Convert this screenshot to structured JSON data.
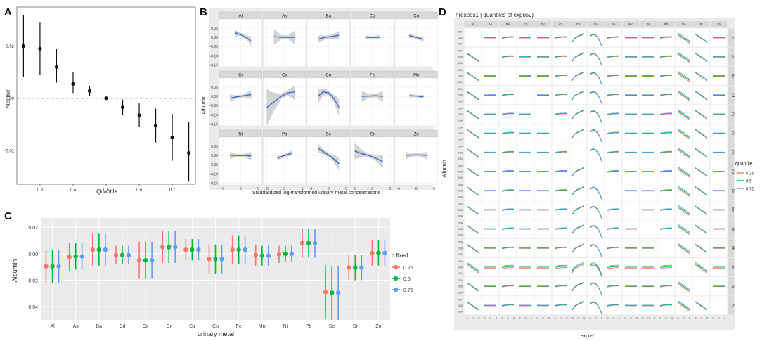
{
  "panel_letters": [
    "A",
    "B",
    "C",
    "D"
  ],
  "chart_data": [
    {
      "panel": "A",
      "type": "scatter",
      "xlabel": "Quantile",
      "ylabel": "Albumin",
      "xlim": [
        0.23,
        0.77
      ],
      "ylim": [
        -0.033,
        0.035
      ],
      "x_ticks": [
        0.3,
        0.4,
        0.5,
        0.6,
        0.7
      ],
      "x_tick_labels": [
        "0.3",
        "0.4",
        "0.5",
        "0.6",
        "0.7"
      ],
      "y_ticks": [
        0.02,
        0.0,
        -0.02
      ],
      "y_tick_labels": [
        "0.02",
        "0.00",
        "-0.02"
      ],
      "reference_line": 0.0,
      "points": [
        {
          "x": 0.25,
          "y": 0.02,
          "lo": 0.008,
          "hi": 0.032
        },
        {
          "x": 0.3,
          "y": 0.019,
          "lo": 0.009,
          "hi": 0.029
        },
        {
          "x": 0.35,
          "y": 0.012,
          "lo": 0.006,
          "hi": 0.019
        },
        {
          "x": 0.4,
          "y": 0.0055,
          "lo": 0.002,
          "hi": 0.01
        },
        {
          "x": 0.45,
          "y": 0.0028,
          "lo": 0.001,
          "hi": 0.0045
        },
        {
          "x": 0.5,
          "y": 0.0,
          "lo": 0.0,
          "hi": 0.0
        },
        {
          "x": 0.55,
          "y": -0.0035,
          "lo": -0.0065,
          "hi": -0.0005
        },
        {
          "x": 0.6,
          "y": -0.0065,
          "lo": -0.011,
          "hi": -0.002
        },
        {
          "x": 0.65,
          "y": -0.0105,
          "lo": -0.017,
          "hi": -0.004
        },
        {
          "x": 0.7,
          "y": -0.015,
          "lo": -0.024,
          "hi": -0.006
        },
        {
          "x": 0.75,
          "y": -0.021,
          "lo": -0.032,
          "hi": -0.009
        }
      ]
    },
    {
      "panel": "B",
      "type": "line",
      "xlabel": "Standardized log-transformed urinary metal concentrations",
      "ylabel": "Albumin",
      "xlim": [
        -6,
        6
      ],
      "ylim": [
        -0.16,
        0.1
      ],
      "x_ticks": [
        -5,
        0,
        5
      ],
      "x_tick_labels": [
        "-5",
        "0",
        "5"
      ],
      "y_ticks": [
        0.05,
        0.0,
        -0.05,
        -0.1,
        -0.15
      ],
      "y_tick_labels": [
        "0.05",
        "0.00",
        "-0.05",
        "-0.10",
        "-0.15"
      ],
      "facets": [
        {
          "name": "Al",
          "x": [
            -1.5,
            0,
            1.5,
            3
          ],
          "y": [
            0.025,
            0.015,
            0.0,
            -0.02
          ],
          "lo": [
            0.005,
            0.008,
            -0.01,
            -0.045
          ],
          "hi": [
            0.04,
            0.025,
            0.01,
            0.005
          ]
        },
        {
          "name": "As",
          "x": [
            -3,
            -1,
            1,
            3
          ],
          "y": [
            0.005,
            0.0,
            0.0,
            0.0
          ],
          "lo": [
            -0.04,
            -0.012,
            -0.01,
            -0.04
          ],
          "hi": [
            0.045,
            0.012,
            0.01,
            0.04
          ]
        },
        {
          "name": "Ba",
          "x": [
            -3,
            -1,
            1,
            3
          ],
          "y": [
            -0.01,
            0.0,
            0.005,
            0.012
          ],
          "lo": [
            -0.03,
            -0.012,
            -0.006,
            -0.012
          ],
          "hi": [
            0.01,
            0.01,
            0.015,
            0.035
          ]
        },
        {
          "name": "Cd",
          "x": [
            -2,
            0,
            2
          ],
          "y": [
            0.0,
            0.0,
            0.0
          ],
          "lo": [
            -0.012,
            -0.006,
            -0.012
          ],
          "hi": [
            0.012,
            0.006,
            0.012
          ]
        },
        {
          "name": "Co",
          "x": [
            -2,
            0,
            2
          ],
          "y": [
            0.01,
            0.0,
            -0.01
          ],
          "lo": [
            -0.002,
            -0.006,
            -0.025
          ],
          "hi": [
            0.022,
            0.006,
            0.005
          ]
        },
        {
          "name": "Cr",
          "x": [
            -3,
            -1,
            1,
            3
          ],
          "y": [
            -0.01,
            -0.002,
            0.004,
            0.01
          ],
          "lo": [
            -0.03,
            -0.01,
            -0.004,
            -0.015
          ],
          "hi": [
            0.01,
            0.006,
            0.012,
            0.035
          ]
        },
        {
          "name": "Cs",
          "x": [
            -5,
            -3,
            -1,
            1,
            3
          ],
          "y": [
            -0.06,
            -0.03,
            0.0,
            0.02,
            0.025
          ],
          "lo": [
            -0.16,
            -0.08,
            -0.015,
            0.005,
            -0.02
          ],
          "hi": [
            0.04,
            0.02,
            0.015,
            0.035,
            0.06
          ]
        },
        {
          "name": "Cu",
          "x": [
            -3,
            -1.5,
            0,
            1.5,
            3
          ],
          "y": [
            0.0,
            0.025,
            0.02,
            -0.01,
            -0.06
          ],
          "lo": [
            -0.04,
            0.005,
            0.008,
            -0.03,
            -0.11
          ],
          "hi": [
            0.04,
            0.045,
            0.032,
            0.01,
            -0.01
          ]
        },
        {
          "name": "Fe",
          "x": [
            -3,
            -1,
            1,
            3
          ],
          "y": [
            0.0,
            0.002,
            0.004,
            0.0
          ],
          "lo": [
            -0.03,
            -0.008,
            -0.006,
            -0.03
          ],
          "hi": [
            0.03,
            0.012,
            0.014,
            0.03
          ]
        },
        {
          "name": "Mn",
          "x": [
            -2,
            0,
            2
          ],
          "y": [
            0.004,
            0.002,
            -0.002
          ],
          "lo": [
            -0.006,
            -0.004,
            -0.012
          ],
          "hi": [
            0.014,
            0.008,
            0.008
          ]
        },
        {
          "name": "Ni",
          "x": [
            -3,
            -1,
            1,
            3
          ],
          "y": [
            0.0,
            0.0,
            0.0,
            -0.003
          ],
          "lo": [
            -0.02,
            -0.008,
            -0.008,
            -0.025
          ],
          "hi": [
            0.02,
            0.008,
            0.008,
            0.02
          ]
        },
        {
          "name": "Pb",
          "x": [
            -2,
            0,
            2
          ],
          "y": [
            -0.015,
            0.0,
            0.012
          ],
          "lo": [
            -0.03,
            -0.008,
            -0.002
          ],
          "hi": [
            0.0,
            0.008,
            0.026
          ]
        },
        {
          "name": "Se",
          "x": [
            -3,
            -1,
            1,
            3
          ],
          "y": [
            0.04,
            0.015,
            -0.01,
            -0.045
          ],
          "lo": [
            0.015,
            0.002,
            -0.025,
            -0.08
          ],
          "hi": [
            0.065,
            0.028,
            0.005,
            -0.01
          ]
        },
        {
          "name": "Sr",
          "x": [
            -5,
            -3,
            -1,
            1,
            3
          ],
          "y": [
            0.025,
            0.01,
            0.0,
            -0.015,
            -0.035
          ],
          "lo": [
            -0.02,
            -0.01,
            -0.008,
            -0.03,
            -0.07
          ],
          "hi": [
            0.07,
            0.03,
            0.008,
            0.0,
            0.0
          ]
        },
        {
          "name": "Zn",
          "x": [
            -3,
            -1,
            1,
            3
          ],
          "y": [
            0.0,
            0.003,
            0.003,
            0.0
          ],
          "lo": [
            -0.02,
            -0.005,
            -0.005,
            -0.02
          ],
          "hi": [
            0.02,
            0.011,
            0.011,
            0.02
          ]
        }
      ]
    },
    {
      "panel": "C",
      "type": "scatter",
      "xlabel": "urinary metal",
      "ylabel": "Albumin",
      "ylim": [
        -0.05,
        0.027
      ],
      "y_ticks": [
        0.02,
        0.0,
        -0.02,
        -0.04
      ],
      "y_tick_labels": [
        "0.02",
        "0.00",
        "-0.02",
        "-0.04"
      ],
      "categories": [
        "Al",
        "As",
        "Ba",
        "Cd",
        "Co",
        "Cr",
        "Cs",
        "Cu",
        "Fe",
        "Mn",
        "Ni",
        "Pb",
        "Se",
        "Sr",
        "Zn"
      ],
      "legend_title": "q.fixed",
      "legend_position": "right",
      "series": [
        {
          "name": "0.25",
          "color": "#F8766D",
          "values": [
            -0.0095,
            -0.0025,
            0.003,
            -0.001,
            -0.005,
            0.005,
            0.003,
            -0.004,
            0.003,
            -0.001,
            -0.0005,
            0.008,
            -0.029,
            -0.0105,
            0.0005
          ],
          "lo": [
            -0.022,
            -0.013,
            -0.009,
            -0.008,
            -0.019,
            -0.007,
            -0.005,
            -0.015,
            -0.008,
            -0.009,
            -0.007,
            -0.003,
            -0.049,
            -0.02,
            -0.009
          ],
          "hi": [
            0.003,
            0.008,
            0.015,
            0.006,
            0.009,
            0.017,
            0.011,
            0.007,
            0.014,
            0.007,
            0.006,
            0.019,
            -0.009,
            -0.001,
            0.01
          ]
        },
        {
          "name": "0.5",
          "color": "#00BA38",
          "values": [
            -0.0095,
            -0.002,
            0.003,
            -0.001,
            -0.005,
            0.005,
            0.003,
            -0.004,
            0.003,
            -0.0015,
            0.0,
            0.008,
            -0.0295,
            -0.0105,
            0.0005
          ],
          "lo": [
            -0.022,
            -0.012,
            -0.009,
            -0.008,
            -0.019,
            -0.007,
            -0.005,
            -0.015,
            -0.008,
            -0.009,
            -0.006,
            -0.003,
            -0.05,
            -0.02,
            -0.009
          ],
          "hi": [
            0.003,
            0.008,
            0.015,
            0.006,
            0.009,
            0.017,
            0.011,
            0.007,
            0.014,
            0.006,
            0.006,
            0.019,
            -0.009,
            -0.001,
            0.01
          ]
        },
        {
          "name": "0.75",
          "color": "#619CFF",
          "values": [
            -0.0095,
            -0.002,
            0.003,
            -0.001,
            -0.005,
            0.005,
            0.003,
            -0.004,
            0.003,
            -0.0015,
            0.0,
            0.008,
            -0.0295,
            -0.0105,
            0.0005
          ],
          "lo": [
            -0.022,
            -0.012,
            -0.009,
            -0.008,
            -0.019,
            -0.007,
            -0.005,
            -0.015,
            -0.008,
            -0.009,
            -0.006,
            -0.003,
            -0.05,
            -0.02,
            -0.009
          ],
          "hi": [
            0.003,
            0.008,
            0.015,
            0.006,
            0.009,
            0.017,
            0.011,
            0.007,
            0.014,
            0.006,
            0.006,
            0.019,
            -0.009,
            -0.001,
            0.01
          ]
        }
      ]
    },
    {
      "panel": "D",
      "type": "line",
      "title": "h(expos1 | quantiles of expos2)",
      "xlabel": "expos1",
      "ylabel": "Albumin",
      "legend_title": "quantile",
      "legend_position": "right",
      "legend": [
        {
          "label": "0.25",
          "color": "#F8766D"
        },
        {
          "label": "0.5",
          "color": "#00BA38"
        },
        {
          "label": "0.75",
          "color": "#619CFF"
        }
      ],
      "metals": [
        "Al",
        "As",
        "Ba",
        "Cd",
        "Co",
        "Cr",
        "Cs",
        "Cu",
        "Fe",
        "Mn",
        "Ni",
        "Pb",
        "Se",
        "Sr",
        "Zn"
      ],
      "y_ticks": [
        0.04,
        0.0,
        -0.04
      ],
      "y_tick_labels": [
        "0.04",
        "0.00",
        "-0.04"
      ],
      "x_ticks": [
        -5,
        0,
        5
      ],
      "x_tick_labels": [
        "-5",
        "0",
        "5"
      ],
      "curve_shapes_by_column": {
        "Al": "decreasing",
        "As": "flat",
        "Ba": "slight-rise",
        "Cd": "flat",
        "Co": "flat",
        "Cr": "slight-rise",
        "Cs": "increasing",
        "Cu": "hump",
        "Fe": "slight-rise",
        "Mn": "flat",
        "Ni": "flat",
        "Pb": "slight-rise",
        "Se": "decreasing",
        "Sr": "decreasing",
        "Zn": "flat"
      }
    }
  ]
}
